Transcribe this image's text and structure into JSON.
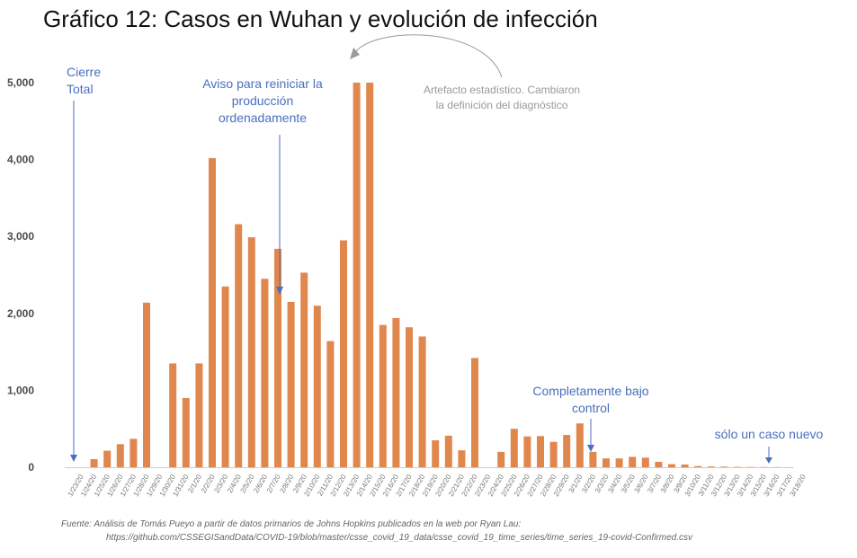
{
  "title": "Gráfico 12: Casos en Wuhan y evolución de infección",
  "source_line1": "Fuente: Análisis de Tomás Pueyo a partir de datos primarios de Johns Hopkins publicados en la web por Ryan Lau:",
  "source_line2": "https://github.com/CSSEGISandData/COVID-19/blob/master/csse_covid_19_data/csse_covid_19_time_series/time_series_19-covid-Confirmed.csv",
  "annotations": {
    "cierre": [
      "Cierre",
      "Total"
    ],
    "aviso": [
      "Aviso para reiniciar la",
      "producción",
      "ordenadamente"
    ],
    "artefacto": [
      "Artefacto estadístico. Cambiaron",
      "la definición del diagnóstico"
    ],
    "completamente": [
      "Completamente bajo",
      "control"
    ],
    "solo": [
      "sólo un caso nuevo"
    ]
  },
  "colors": {
    "bar": "#e0874d",
    "annotation": "#4a6fbf",
    "note": "#9a9a9a"
  },
  "chart_data": {
    "type": "bar",
    "title": "Gráfico 12: Casos en Wuhan y evolución de infección",
    "xlabel": "",
    "ylabel": "",
    "ylim": [
      0,
      5000
    ],
    "yticks": [
      0,
      1000,
      2000,
      3000,
      4000,
      5000
    ],
    "ytick_labels": [
      "0",
      "1,000",
      "2,000",
      "3,000",
      "4,000",
      "5,000"
    ],
    "grid": false,
    "categories": [
      "1/23/20",
      "1/24/20",
      "1/25/20",
      "1/26/20",
      "1/27/20",
      "1/28/20",
      "1/29/20",
      "1/30/20",
      "1/31/20",
      "2/1/20",
      "2/2/20",
      "2/3/20",
      "2/4/20",
      "2/5/20",
      "2/6/20",
      "2/7/20",
      "2/8/20",
      "2/9/20",
      "2/10/20",
      "2/11/20",
      "2/12/20",
      "2/13/20",
      "2/14/20",
      "2/15/20",
      "2/16/20",
      "2/17/20",
      "2/18/20",
      "2/19/20",
      "2/20/20",
      "2/21/20",
      "2/22/20",
      "2/23/20",
      "2/24/20",
      "2/25/20",
      "2/26/20",
      "2/27/20",
      "2/28/20",
      "2/29/20",
      "3/1/20",
      "3/2/20",
      "3/3/20",
      "3/4/20",
      "3/5/20",
      "3/6/20",
      "3/7/20",
      "3/8/20",
      "3/9/20",
      "3/10/20",
      "3/11/20",
      "3/12/20",
      "3/13/20",
      "3/14/20",
      "3/15/20",
      "3/16/20",
      "3/17/20",
      "3/18/20"
    ],
    "values": [
      0,
      105,
      215,
      300,
      370,
      2140,
      0,
      1350,
      900,
      1350,
      4020,
      2350,
      3160,
      2990,
      2450,
      2840,
      2150,
      2530,
      2100,
      1640,
      2950,
      5000,
      5000,
      1850,
      1940,
      1820,
      1700,
      350,
      410,
      220,
      1420,
      0,
      200,
      500,
      400,
      405,
      330,
      420,
      570,
      200,
      115,
      115,
      135,
      125,
      70,
      40,
      35,
      15,
      10,
      8,
      5,
      4,
      3,
      2,
      1,
      0
    ]
  }
}
